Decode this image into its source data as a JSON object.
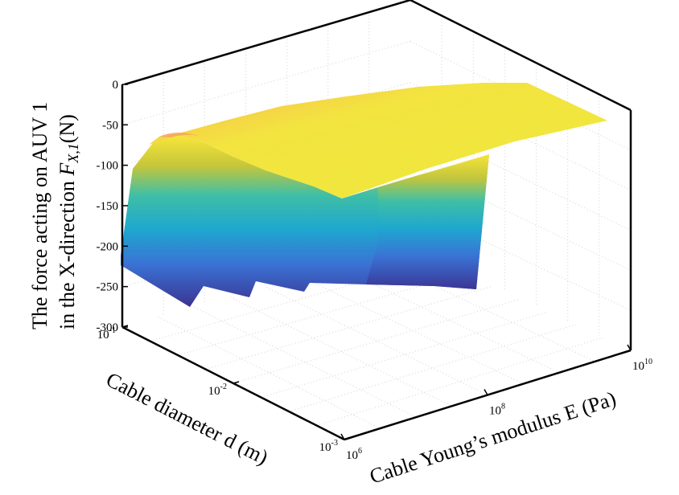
{
  "chart_data": {
    "type": "surface3d",
    "title": "",
    "zlabel_line1": "The force acting on AUV 1",
    "zlabel_line2_prefix": "in the X-direction ",
    "zlabel_symbol": "F",
    "zlabel_subscript": "X,1",
    "zlabel_unit": "(N)",
    "xlabel": "Cable diameter d (m)",
    "ylabel": "Cable Young’s modulus E (Pa)",
    "zlim": [
      -300,
      0
    ],
    "z_ticks": [
      "0",
      "-50",
      "-100",
      "-150",
      "-200",
      "-250",
      "-300"
    ],
    "x_ticks": [
      {
        "base": "10",
        "exp": "-1"
      },
      {
        "base": "10",
        "exp": "-2"
      },
      {
        "base": "10",
        "exp": "-3"
      }
    ],
    "y_ticks": [
      {
        "base": "10",
        "exp": "6"
      },
      {
        "base": "10",
        "exp": "8"
      },
      {
        "base": "10",
        "exp": "10"
      }
    ],
    "x_log_range": [
      -3,
      -1
    ],
    "y_log_range": [
      6,
      10
    ],
    "grid": true,
    "colormap": "parula",
    "surface_summary": {
      "d_values_log10": [
        -1,
        -1.5,
        -2,
        -2.5,
        -3
      ],
      "E_values_log10": [
        6,
        7,
        8,
        9,
        10
      ],
      "F_top_approx": [
        [
          -100,
          -60,
          -40,
          -30,
          -25
        ],
        [
          -60,
          -45,
          -35,
          -28,
          -20
        ],
        [
          -45,
          -35,
          -25,
          -18,
          -12
        ],
        [
          -40,
          -25,
          -15,
          -8,
          -5
        ],
        [
          -120,
          -60,
          -30,
          -10,
          -5
        ]
      ],
      "F_min_approx": -275
    }
  }
}
